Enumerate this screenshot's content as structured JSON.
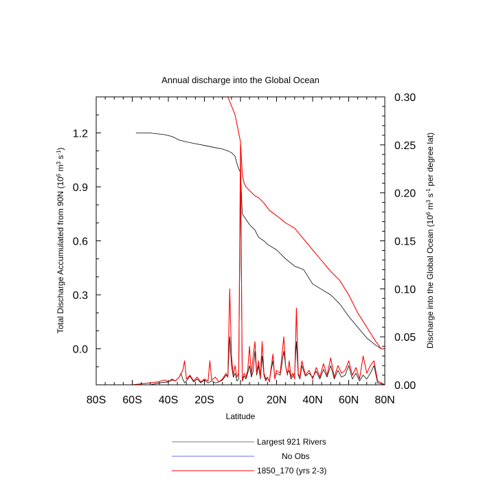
{
  "chart_data": {
    "type": "line",
    "title": "Annual discharge into the Global Ocean",
    "xlabel": "Latitude",
    "ylabel_left": "Total Discharge Accumulated from 90N (10^6 m^3 s^-1)",
    "ylabel_left_parts": [
      "Total Discharge Accumulated from 90N (10",
      "6",
      " m",
      "3",
      " s",
      "-1",
      ")"
    ],
    "ylabel_right": "Discharge into the Global Ocean (10^6 m^3 s^-1 per degree lat)",
    "ylabel_right_parts": [
      "Discharge into the Global Ocean (10",
      "6",
      " m",
      "3",
      " s",
      "-1",
      " per degree lat)"
    ],
    "xlim": [
      -80,
      80
    ],
    "ylim_left": [
      -0.2,
      1.4
    ],
    "ylim_right": [
      0,
      0.3
    ],
    "grid": false,
    "legend_placement": "bottom",
    "x_ticks": [
      -80,
      -60,
      -40,
      -20,
      0,
      20,
      40,
      60,
      80
    ],
    "x_tick_labels": [
      "80S",
      "60S",
      "40S",
      "20S",
      "0",
      "20N",
      "40N",
      "60N",
      "80N"
    ],
    "y_left_ticks": [
      0.0,
      0.3,
      0.6,
      0.9,
      1.2
    ],
    "y_left_tick_labels": [
      "0.0",
      "0.3",
      "0.6",
      "0.9",
      "1.2"
    ],
    "y_right_ticks": [
      0,
      0.05,
      0.1,
      0.15,
      0.2,
      0.25,
      0.3
    ],
    "y_right_tick_labels": [
      "0.00",
      "0.05",
      "0.10",
      "0.15",
      "0.20",
      "0.25",
      "0.30"
    ],
    "series": [
      {
        "name": "Largest 921 Rivers",
        "axis": "left",
        "color": "#000000",
        "x": [
          -58,
          -50,
          -42,
          -38,
          -34,
          -30,
          -25,
          -20,
          -15,
          -10,
          -7,
          -5,
          -3,
          -2,
          -1,
          0,
          1,
          3,
          5,
          8,
          10,
          13,
          15,
          20,
          25,
          30,
          35,
          40,
          45,
          50,
          55,
          60,
          65,
          70,
          75,
          78,
          80
        ],
        "y": [
          1.2,
          1.199,
          1.19,
          1.18,
          1.16,
          1.15,
          1.14,
          1.13,
          1.12,
          1.11,
          1.1,
          1.09,
          1.07,
          1.03,
          1.0,
          0.98,
          0.75,
          0.72,
          0.69,
          0.66,
          0.62,
          0.6,
          0.58,
          0.55,
          0.5,
          0.46,
          0.44,
          0.36,
          0.33,
          0.3,
          0.25,
          0.18,
          0.12,
          0.06,
          0.02,
          0.0,
          0.0
        ]
      },
      {
        "name": "No Obs",
        "axis": "left",
        "color": "#6b6bff",
        "x": [],
        "y": []
      },
      {
        "name": "1850_170 (yrs 2-3)",
        "axis": "left",
        "color": "#ff0000",
        "x": [
          -7,
          -5,
          -3,
          -2,
          -1,
          0,
          1,
          2,
          3,
          5,
          8,
          10,
          13,
          16,
          20,
          25,
          30,
          35,
          40,
          45,
          50,
          55,
          60,
          65,
          70,
          75,
          78,
          80
        ],
        "y": [
          1.4,
          1.35,
          1.3,
          1.25,
          1.2,
          1.15,
          0.97,
          0.92,
          0.9,
          0.88,
          0.85,
          0.84,
          0.81,
          0.77,
          0.74,
          0.7,
          0.67,
          0.61,
          0.55,
          0.49,
          0.43,
          0.38,
          0.3,
          0.2,
          0.12,
          0.04,
          0.0,
          0.0
        ]
      },
      {
        "name": "",
        "axis": "right",
        "color": "#000000",
        "x": [
          -80,
          -60,
          -50,
          -45,
          -40,
          -38,
          -36,
          -34,
          -33,
          -32,
          -31,
          -30,
          -28,
          -26,
          -24,
          -22,
          -20,
          -18,
          -16,
          -14,
          -12,
          -10,
          -8,
          -7,
          -6,
          -5,
          -4,
          -3,
          -2,
          -1,
          0,
          1,
          2,
          3,
          4,
          5,
          6,
          7,
          8,
          9,
          10,
          11,
          12,
          13,
          14,
          15,
          16,
          17,
          18,
          19,
          20,
          22,
          24,
          25,
          26,
          27,
          28,
          30,
          31,
          32,
          33,
          34,
          36,
          38,
          40,
          42,
          44,
          46,
          48,
          50,
          52,
          54,
          56,
          58,
          60,
          62,
          64,
          66,
          68,
          70,
          72,
          74,
          76,
          80
        ],
        "y": [
          0,
          0,
          0,
          0.002,
          0.003,
          0.005,
          0.004,
          0.008,
          0.012,
          0.006,
          0.002,
          0.004,
          0.009,
          0.003,
          0.006,
          0.002,
          0.005,
          0.002,
          0.004,
          0.002,
          0.003,
          0.005,
          0.01,
          0.008,
          0.05,
          0.02,
          0.008,
          0.012,
          0.004,
          0.006,
          0.22,
          0.004,
          0.009,
          0.006,
          0.012,
          0.02,
          0.008,
          0.014,
          0.035,
          0.01,
          0.02,
          0.006,
          0.03,
          0.01,
          0.004,
          0.008,
          0.003,
          0.015,
          0.025,
          0.008,
          0.012,
          0.01,
          0.035,
          0.02,
          0.012,
          0.015,
          0.006,
          0.012,
          0.045,
          0.01,
          0.006,
          0.02,
          0.009,
          0.012,
          0.008,
          0.014,
          0.006,
          0.016,
          0.008,
          0.02,
          0.006,
          0.015,
          0.008,
          0.01,
          0.02,
          0.006,
          0.012,
          0.004,
          0.01,
          0.006,
          0.012,
          0.02,
          0.002,
          0
        ]
      },
      {
        "name": "",
        "axis": "right",
        "color": "#ff0000",
        "x": [
          -80,
          -60,
          -55,
          -50,
          -46,
          -44,
          -42,
          -40,
          -38,
          -36,
          -34,
          -32,
          -31,
          -30,
          -28,
          -26,
          -24,
          -22,
          -20,
          -18,
          -17,
          -16,
          -14,
          -12,
          -10,
          -8,
          -7,
          -6,
          -5,
          -4,
          -3,
          -2,
          -1,
          0,
          1,
          2,
          3,
          4,
          5,
          6,
          7,
          8,
          9,
          10,
          11,
          12,
          13,
          14,
          15,
          16,
          17,
          18,
          19,
          20,
          22,
          24,
          25,
          26,
          27,
          28,
          29,
          30,
          31,
          32,
          33,
          34,
          36,
          38,
          40,
          42,
          44,
          46,
          48,
          50,
          52,
          54,
          56,
          58,
          60,
          62,
          64,
          66,
          68,
          70,
          72,
          74,
          76,
          80
        ],
        "y": [
          0,
          0,
          0.001,
          0.002,
          0.003,
          0.004,
          0.005,
          0.003,
          0.006,
          0.004,
          0.008,
          0.015,
          0.025,
          0.006,
          0.01,
          0.004,
          0.008,
          0.003,
          0.006,
          0.004,
          0.025,
          0.005,
          0.008,
          0.003,
          0.006,
          0.012,
          0.008,
          0.1,
          0.03,
          0.01,
          0.02,
          0.008,
          0.012,
          0.25,
          0.004,
          0.012,
          0.008,
          0.015,
          0.04,
          0.01,
          0.03,
          0.045,
          0.012,
          0.025,
          0.008,
          0.045,
          0.012,
          0.006,
          0.008,
          0.003,
          0.018,
          0.032,
          0.006,
          0.015,
          0.012,
          0.05,
          0.02,
          0.01,
          0.025,
          0.008,
          0.012,
          0.006,
          0.08,
          0.012,
          0.008,
          0.025,
          0.01,
          0.015,
          0.006,
          0.018,
          0.008,
          0.022,
          0.01,
          0.028,
          0.008,
          0.02,
          0.012,
          0.015,
          0.025,
          0.01,
          0.018,
          0.006,
          0.03,
          0.012,
          0.02,
          0.025,
          0.004,
          0
        ]
      }
    ],
    "legend": [
      {
        "label": "Largest 921 Rivers",
        "color": "#7a7a7a"
      },
      {
        "label": "No Obs",
        "color": "#6b6bff"
      },
      {
        "label": "1850_170 (yrs 2-3)",
        "color": "#ff0000"
      }
    ]
  }
}
